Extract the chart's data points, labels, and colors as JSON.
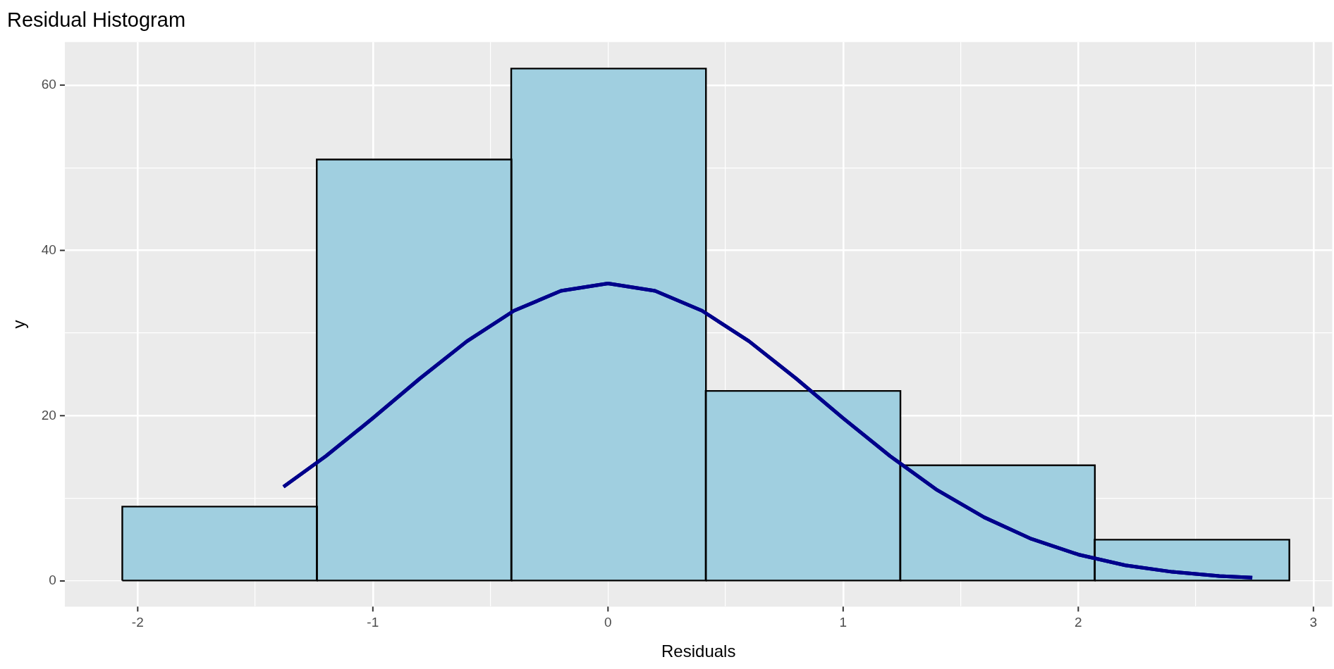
{
  "chart_data": {
    "type": "histogram",
    "title": "Residual Histogram",
    "xlabel": "Residuals",
    "ylabel": "y",
    "bins": [
      -2.065,
      -1.238,
      -0.411,
      0.416,
      1.243,
      2.07,
      2.897
    ],
    "values": [
      9,
      51,
      62,
      23,
      14,
      5
    ],
    "color": "#a0cfe0",
    "series": [
      {
        "type": "line",
        "color": "#00008b",
        "x": [
          -1.38,
          -1.2,
          -1.0,
          -0.8,
          -0.6,
          -0.4,
          -0.2,
          0,
          0.2,
          0.4,
          0.6,
          0.8,
          1.0,
          1.2,
          1.4,
          1.6,
          1.8,
          2.0,
          2.2,
          2.4,
          2.6,
          2.74
        ],
        "values": [
          11.4,
          15.1,
          19.7,
          24.5,
          29.0,
          32.7,
          35.1,
          36.0,
          35.1,
          32.7,
          29.0,
          24.5,
          19.7,
          15.1,
          11.0,
          7.7,
          5.1,
          3.2,
          1.9,
          1.1,
          0.6,
          0.4
        ]
      }
    ],
    "xlim": [
      -2.31,
      3.08
    ],
    "xticks": [
      -2,
      {
        "value": -1.5,
        "label": null
      },
      -1,
      {
        "value": -0.5,
        "label": null
      },
      0,
      {
        "value": 0.5,
        "label": null
      },
      1,
      {
        "value": 1.5,
        "label": null
      },
      2,
      {
        "value": 2.5,
        "label": null
      },
      3
    ],
    "ylim": [
      -3.1,
      65.2
    ],
    "yticks": [
      0,
      {
        "value": 10,
        "label": null
      },
      20,
      {
        "value": 30,
        "label": null
      },
      40,
      {
        "value": 50,
        "label": null
      },
      60
    ],
    "grid": true,
    "legend": false,
    "marker": "none"
  }
}
